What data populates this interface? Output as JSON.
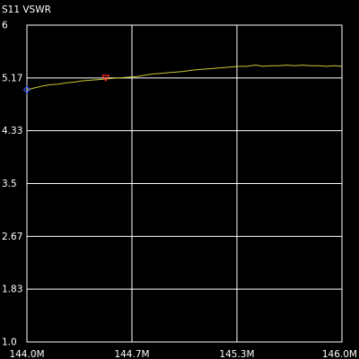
{
  "chart_data": {
    "type": "line",
    "title": "S11 VSWR",
    "xlabel": "",
    "ylabel": "",
    "xlim": [
      144.0,
      146.0
    ],
    "ylim": [
      1.0,
      6.0
    ],
    "x_ticks": [
      144.0,
      144.66667,
      145.33333,
      146.0
    ],
    "x_tick_labels": [
      "144.0M",
      "144.7M",
      "145.3M",
      "146.0M"
    ],
    "y_ticks": [
      6.0,
      5.16667,
      4.33333,
      3.5,
      2.66667,
      1.83333,
      1.0
    ],
    "y_tick_labels": [
      "6",
      "5.17",
      "4.33",
      "3.5",
      "2.67",
      "1.83",
      "1.0"
    ],
    "grid": true,
    "colors": {
      "background": "#000000",
      "frame": "#ffffff",
      "grid": "#ffffff",
      "trace": "#c8c832",
      "marker_start": "#3355ff",
      "marker_2": "#ff2222"
    },
    "series": [
      {
        "x": [
          144.0,
          144.05,
          144.1,
          144.15,
          144.2,
          144.25,
          144.3,
          144.35,
          144.4,
          144.45,
          144.5,
          144.55,
          144.6,
          144.65,
          144.7,
          144.75,
          144.8,
          144.85,
          144.9,
          144.95,
          145.0,
          145.05,
          145.1,
          145.15,
          145.2,
          145.25,
          145.3,
          145.35,
          145.4,
          145.45,
          145.5,
          145.55,
          145.6,
          145.65,
          145.7,
          145.75,
          145.8,
          145.85,
          145.9,
          145.95,
          146.0
        ],
        "values": [
          4.98,
          5.01,
          5.04,
          5.06,
          5.07,
          5.09,
          5.1,
          5.12,
          5.13,
          5.14,
          5.15,
          5.16,
          5.17,
          5.18,
          5.19,
          5.21,
          5.23,
          5.24,
          5.25,
          5.26,
          5.27,
          5.29,
          5.3,
          5.31,
          5.32,
          5.33,
          5.34,
          5.35,
          5.35,
          5.37,
          5.35,
          5.36,
          5.36,
          5.37,
          5.36,
          5.37,
          5.36,
          5.36,
          5.35,
          5.36,
          5.35
        ]
      }
    ],
    "markers": [
      {
        "shape": "diamond",
        "color_key": "marker_start",
        "x": 144.0,
        "y": 4.98
      },
      {
        "shape": "triangle-down",
        "color_key": "marker_2",
        "x": 144.5,
        "y": 5.15
      }
    ]
  }
}
